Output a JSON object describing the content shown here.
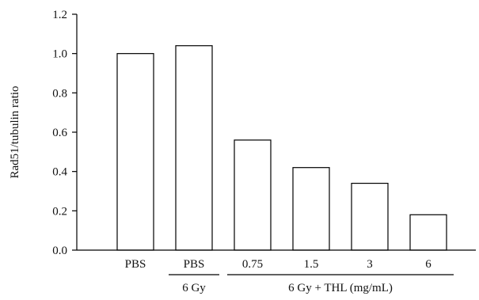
{
  "chart_data": {
    "type": "bar",
    "title": "",
    "xlabel": "",
    "ylabel": "Rad51/tubulin ratio",
    "ylim": [
      0,
      1.2
    ],
    "yticks": [
      "0.0",
      "0.2",
      "0.4",
      "0.6",
      "0.8",
      "1.0",
      "1.2"
    ],
    "grid": false,
    "categories": [
      "PBS",
      "PBS",
      "0.75",
      "1.5",
      "3",
      "6"
    ],
    "values": [
      1.0,
      1.04,
      0.56,
      0.42,
      0.34,
      0.18
    ],
    "group_labels": [
      {
        "label": "6 Gy",
        "categories": [
          1
        ]
      },
      {
        "label": "6 Gy + THL (mg/mL)",
        "categories": [
          2,
          3,
          4,
          5
        ]
      }
    ],
    "colors": {
      "bar_fill": "#ffffff",
      "bar_stroke": "#000000"
    }
  }
}
